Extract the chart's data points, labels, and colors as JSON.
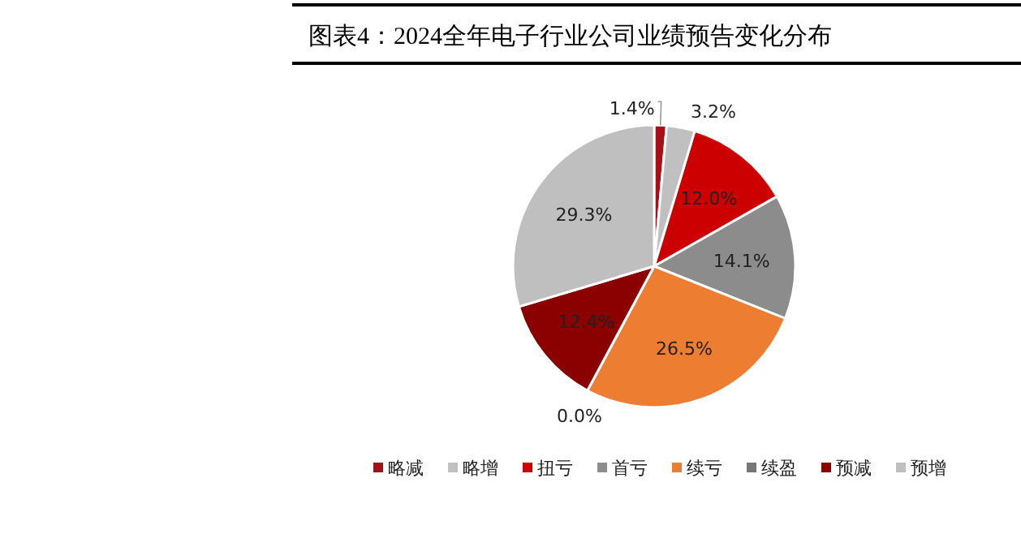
{
  "chart_data": {
    "type": "pie",
    "title": "图表4：2024全年电子行业公司业绩预告变化分布",
    "categories": [
      "略减",
      "略增",
      "扭亏",
      "首亏",
      "续亏",
      "续盈",
      "预减",
      "预增"
    ],
    "values": [
      1.4,
      3.2,
      12.0,
      14.1,
      26.5,
      0.0,
      12.4,
      29.3
    ],
    "colors": [
      "#a50f15",
      "#c0c0c0",
      "#cc0000",
      "#8c8c8c",
      "#ed7d31",
      "#767676",
      "#8b0000",
      "#bfbfbf"
    ],
    "value_labels": [
      "1.4%",
      "3.2%",
      "12.0%",
      "14.1%",
      "26.5%",
      "0.0%",
      "12.4%",
      "29.3%"
    ],
    "legend": "bottom"
  }
}
